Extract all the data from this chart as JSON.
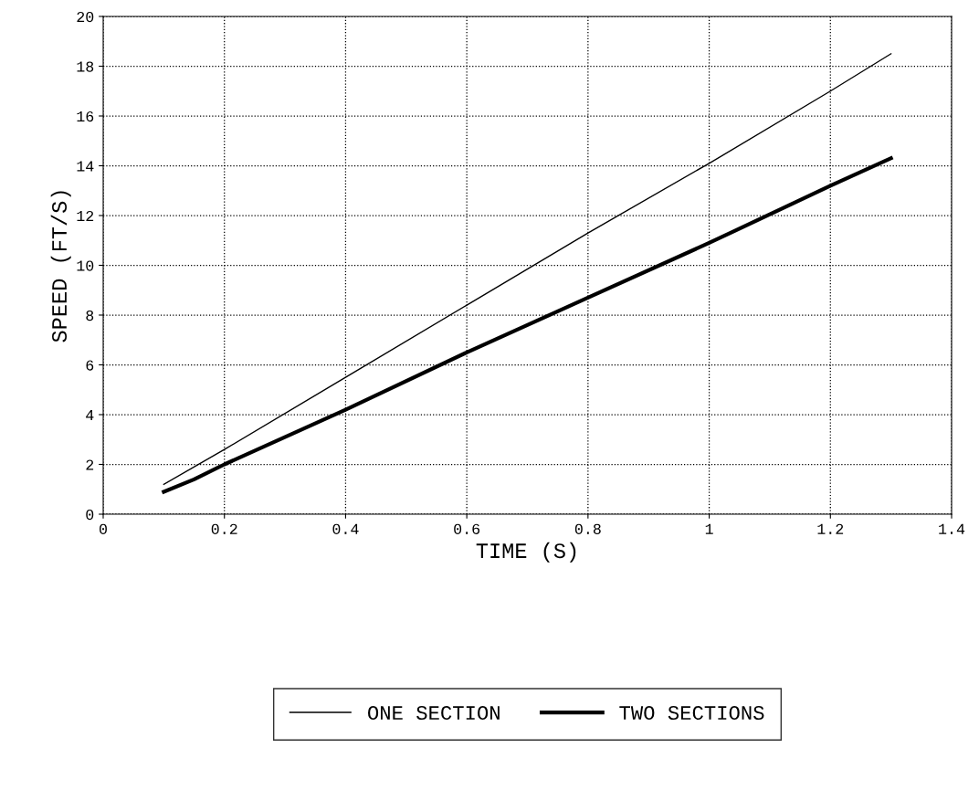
{
  "chart_data": {
    "type": "line",
    "xlabel": "TIME (S)",
    "ylabel": "SPEED (FT/S)",
    "xlim": [
      0,
      1.4
    ],
    "xticks": [
      0,
      0.2,
      0.4,
      0.6,
      0.8,
      1,
      1.2,
      1.4
    ],
    "ylim": [
      0,
      20
    ],
    "yticks": [
      0,
      2,
      4,
      6,
      8,
      10,
      12,
      14,
      16,
      18,
      20
    ],
    "grid": true,
    "legend": "bottom",
    "line_style": "solid",
    "marker": "none",
    "series": [
      {
        "name": "ONE SECTION",
        "color": "#000000",
        "x": [
          0.1,
          0.2,
          0.4,
          0.6,
          0.8,
          1.0,
          1.2,
          1.3
        ],
        "values": [
          1.2,
          2.6,
          5.5,
          8.4,
          11.3,
          14.1,
          17.0,
          18.5
        ]
      },
      {
        "name": "TWO SECTIONS",
        "color": "#000000",
        "x": [
          0.1,
          0.15,
          0.2,
          0.4,
          0.6,
          0.8,
          1.0,
          1.2,
          1.3
        ],
        "values": [
          0.9,
          1.4,
          2.0,
          4.2,
          6.5,
          8.7,
          10.9,
          13.2,
          14.3
        ]
      }
    ]
  }
}
